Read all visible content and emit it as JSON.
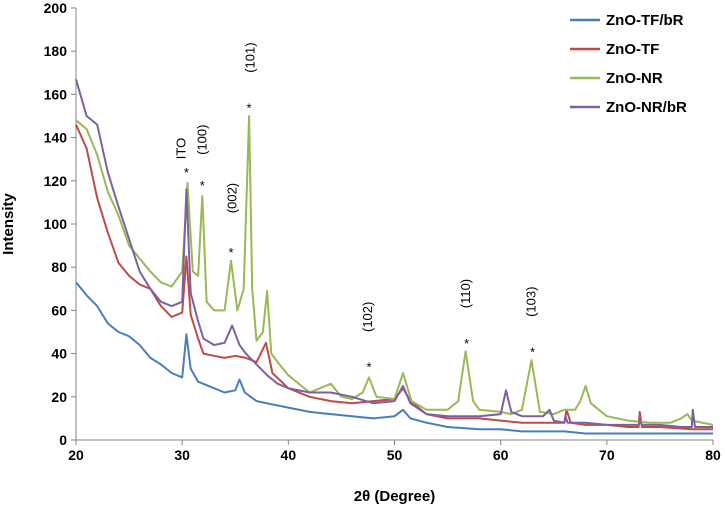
{
  "chart_data": {
    "type": "line",
    "title": "",
    "xlabel": "2θ (Degree)",
    "ylabel": "Intensity",
    "xlim": [
      20,
      80
    ],
    "ylim": [
      0,
      200
    ],
    "xticks": [
      20,
      30,
      40,
      50,
      60,
      70,
      80
    ],
    "yticks": [
      0,
      20,
      40,
      60,
      80,
      100,
      120,
      140,
      160,
      180,
      200
    ],
    "grid": false,
    "legend_position": "top-right",
    "series": [
      {
        "name": "ZnO-TF/bR",
        "color": "#4a7ebb",
        "points": [
          [
            20,
            73
          ],
          [
            21,
            67
          ],
          [
            22,
            62
          ],
          [
            23,
            54
          ],
          [
            24,
            50
          ],
          [
            25,
            48
          ],
          [
            26,
            44
          ],
          [
            27,
            38
          ],
          [
            28,
            35
          ],
          [
            29,
            31
          ],
          [
            30,
            29
          ],
          [
            30.4,
            49
          ],
          [
            30.8,
            33
          ],
          [
            31.5,
            27
          ],
          [
            33,
            24
          ],
          [
            34,
            22
          ],
          [
            35,
            23
          ],
          [
            35.4,
            28
          ],
          [
            35.9,
            22
          ],
          [
            37,
            18
          ],
          [
            38,
            17
          ],
          [
            40,
            15
          ],
          [
            42,
            13
          ],
          [
            44,
            12
          ],
          [
            46,
            11
          ],
          [
            48,
            10
          ],
          [
            50,
            11
          ],
          [
            50.8,
            14
          ],
          [
            51.5,
            10
          ],
          [
            53,
            8
          ],
          [
            55,
            6
          ],
          [
            58,
            5
          ],
          [
            60,
            5
          ],
          [
            62,
            4
          ],
          [
            64,
            4
          ],
          [
            66,
            4
          ],
          [
            68,
            3
          ],
          [
            70,
            3
          ],
          [
            72,
            3
          ],
          [
            74,
            3
          ],
          [
            76,
            3
          ],
          [
            78,
            3
          ],
          [
            80,
            3
          ]
        ]
      },
      {
        "name": "ZnO-TF",
        "color": "#be4b48",
        "points": [
          [
            20,
            146
          ],
          [
            21,
            135
          ],
          [
            22,
            112
          ],
          [
            23,
            96
          ],
          [
            24,
            82
          ],
          [
            25,
            76
          ],
          [
            26,
            72
          ],
          [
            27,
            70
          ],
          [
            28,
            62
          ],
          [
            29,
            57
          ],
          [
            30,
            59
          ],
          [
            30.4,
            85
          ],
          [
            30.8,
            58
          ],
          [
            31.5,
            47
          ],
          [
            32,
            40
          ],
          [
            33,
            39
          ],
          [
            34,
            38
          ],
          [
            35,
            39
          ],
          [
            36,
            38
          ],
          [
            37,
            36
          ],
          [
            37.9,
            45
          ],
          [
            38.5,
            31
          ],
          [
            40,
            24
          ],
          [
            42,
            20
          ],
          [
            44,
            18
          ],
          [
            46,
            17
          ],
          [
            48,
            18
          ],
          [
            50,
            19
          ],
          [
            50.8,
            24
          ],
          [
            51.5,
            18
          ],
          [
            53,
            12
          ],
          [
            55,
            10
          ],
          [
            58,
            10
          ],
          [
            60,
            9
          ],
          [
            62,
            8
          ],
          [
            64,
            8
          ],
          [
            66,
            8
          ],
          [
            66.2,
            14
          ],
          [
            66.6,
            8
          ],
          [
            68,
            7
          ],
          [
            70,
            7
          ],
          [
            72,
            6
          ],
          [
            73,
            6
          ],
          [
            73.1,
            13
          ],
          [
            73.3,
            6
          ],
          [
            75,
            6
          ],
          [
            78,
            5
          ],
          [
            80,
            5
          ]
        ]
      },
      {
        "name": "ZnO-NR",
        "color": "#98b954",
        "points": [
          [
            20,
            148
          ],
          [
            21,
            144
          ],
          [
            22,
            132
          ],
          [
            23,
            115
          ],
          [
            24,
            104
          ],
          [
            25,
            90
          ],
          [
            26,
            84
          ],
          [
            27,
            78
          ],
          [
            28,
            73
          ],
          [
            29,
            71
          ],
          [
            30,
            78
          ],
          [
            30.5,
            119
          ],
          [
            31,
            78
          ],
          [
            31.5,
            76
          ],
          [
            31.9,
            113
          ],
          [
            32.3,
            64
          ],
          [
            33,
            60
          ],
          [
            34,
            60
          ],
          [
            34.6,
            83
          ],
          [
            35.2,
            60
          ],
          [
            35.8,
            70
          ],
          [
            36.3,
            150
          ],
          [
            36.6,
            70
          ],
          [
            37,
            46
          ],
          [
            37.6,
            50
          ],
          [
            38,
            69
          ],
          [
            38.4,
            40
          ],
          [
            39,
            36
          ],
          [
            40,
            30
          ],
          [
            42,
            22
          ],
          [
            44,
            26
          ],
          [
            45,
            20
          ],
          [
            46,
            19
          ],
          [
            47,
            22
          ],
          [
            47.6,
            29
          ],
          [
            48.3,
            20
          ],
          [
            50,
            19
          ],
          [
            50.8,
            31
          ],
          [
            51.6,
            18
          ],
          [
            53,
            14
          ],
          [
            55,
            14
          ],
          [
            56,
            18
          ],
          [
            56.7,
            41
          ],
          [
            57.4,
            18
          ],
          [
            58,
            14
          ],
          [
            60,
            13
          ],
          [
            61,
            12
          ],
          [
            62,
            14
          ],
          [
            62.9,
            37
          ],
          [
            63.7,
            13
          ],
          [
            65,
            12
          ],
          [
            66,
            14
          ],
          [
            67,
            14
          ],
          [
            67.5,
            18
          ],
          [
            68,
            25
          ],
          [
            68.5,
            17
          ],
          [
            70,
            11
          ],
          [
            72,
            9
          ],
          [
            74,
            8
          ],
          [
            76,
            8
          ],
          [
            77,
            10
          ],
          [
            77.6,
            12
          ],
          [
            78,
            9
          ],
          [
            80,
            7
          ]
        ]
      },
      {
        "name": "ZnO-NR/bR",
        "color": "#7d60a0",
        "points": [
          [
            20,
            167
          ],
          [
            21,
            150
          ],
          [
            22,
            146
          ],
          [
            23,
            124
          ],
          [
            24,
            108
          ],
          [
            25,
            93
          ],
          [
            26,
            78
          ],
          [
            27,
            70
          ],
          [
            28,
            64
          ],
          [
            29,
            62
          ],
          [
            30,
            64
          ],
          [
            30.4,
            116
          ],
          [
            30.8,
            68
          ],
          [
            31.5,
            55
          ],
          [
            32,
            47
          ],
          [
            33,
            44
          ],
          [
            34,
            45
          ],
          [
            34.7,
            53
          ],
          [
            35.4,
            44
          ],
          [
            36,
            40
          ],
          [
            37,
            35
          ],
          [
            38,
            30
          ],
          [
            39,
            26
          ],
          [
            40,
            24
          ],
          [
            42,
            22
          ],
          [
            44,
            22
          ],
          [
            46,
            20
          ],
          [
            48,
            17
          ],
          [
            50,
            18
          ],
          [
            50.8,
            25
          ],
          [
            51.5,
            17
          ],
          [
            53,
            12
          ],
          [
            55,
            11
          ],
          [
            58,
            11
          ],
          [
            60,
            12
          ],
          [
            60.5,
            23
          ],
          [
            61,
            13
          ],
          [
            62,
            11
          ],
          [
            64,
            11
          ],
          [
            64.6,
            14
          ],
          [
            65,
            9
          ],
          [
            66,
            8
          ],
          [
            66.1,
            11
          ],
          [
            66.3,
            8
          ],
          [
            68,
            8
          ],
          [
            70,
            7
          ],
          [
            72,
            7
          ],
          [
            73,
            7
          ],
          [
            73.1,
            9
          ],
          [
            73.3,
            7
          ],
          [
            75,
            7
          ],
          [
            77,
            6
          ],
          [
            78,
            6
          ],
          [
            78.1,
            14
          ],
          [
            78.3,
            6
          ],
          [
            80,
            6
          ]
        ]
      }
    ],
    "annotations": [
      {
        "text": "*",
        "x": 30.4,
        "y": 124
      },
      {
        "text": "ITO",
        "x": 30.3,
        "y": 130,
        "rotated": true
      },
      {
        "text": "*",
        "x": 31.9,
        "y": 118
      },
      {
        "text": "(100)",
        "x": 32.3,
        "y": 132,
        "rotated": true
      },
      {
        "text": "*",
        "x": 34.6,
        "y": 87
      },
      {
        "text": "(002)",
        "x": 35.1,
        "y": 105,
        "rotated": true
      },
      {
        "text": "*",
        "x": 36.3,
        "y": 154
      },
      {
        "text": "(101)",
        "x": 36.8,
        "y": 170,
        "rotated": true
      },
      {
        "text": "*",
        "x": 47.6,
        "y": 34
      },
      {
        "text": "(102)",
        "x": 47.9,
        "y": 50,
        "rotated": true
      },
      {
        "text": "*",
        "x": 56.8,
        "y": 45
      },
      {
        "text": "(110)",
        "x": 57.1,
        "y": 61,
        "rotated": true
      },
      {
        "text": "*",
        "x": 63.0,
        "y": 41
      },
      {
        "text": "(103)",
        "x": 63.3,
        "y": 57,
        "rotated": true
      }
    ]
  }
}
